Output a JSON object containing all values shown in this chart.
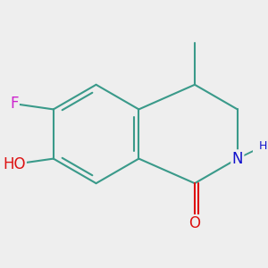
{
  "background_color": "#eeeeee",
  "bond_color": "#3a9a8a",
  "bond_width": 1.5,
  "atom_colors": {
    "F": "#cc22cc",
    "O": "#dd1111",
    "N": "#1111cc",
    "C": "#3a9a8a"
  },
  "font_size_atoms": 12,
  "font_size_small": 9
}
